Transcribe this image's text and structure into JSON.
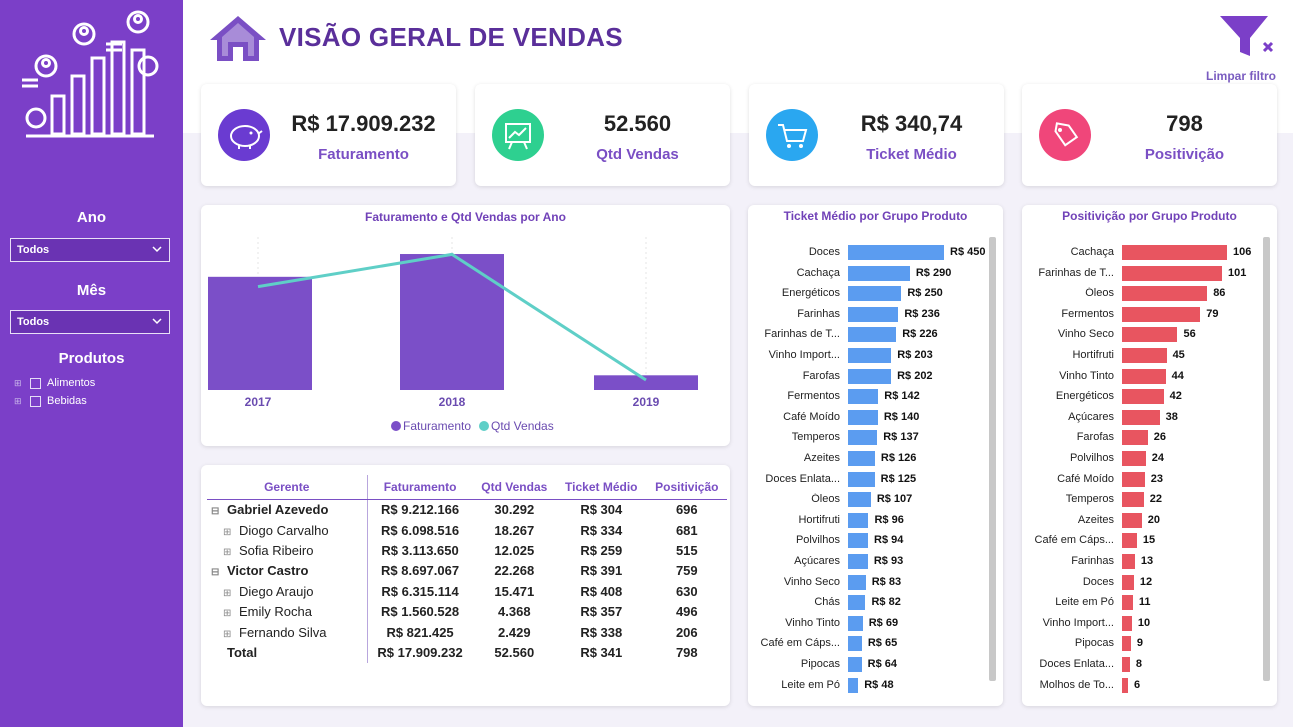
{
  "header": {
    "title": "VISÃO GERAL DE VENDAS",
    "clear_filter": "Limpar filtro"
  },
  "sidebar": {
    "ano_label": "Ano",
    "ano_value": "Todos",
    "mes_label": "Mês",
    "mes_value": "Todos",
    "produtos_label": "Produtos",
    "produtos": [
      "Alimentos",
      "Bebidas"
    ]
  },
  "kpis": [
    {
      "value": "R$ 17.909.232",
      "label": "Faturamento",
      "icon": "piggy-bank-icon",
      "color": "#6a3bd1"
    },
    {
      "value": "52.560",
      "label": "Qtd Vendas",
      "icon": "presentation-chart-icon",
      "color": "#2ed090"
    },
    {
      "value": "R$ 340,74",
      "label": "Ticket Médio",
      "icon": "shopping-cart-icon",
      "color": "#2aa7f0"
    },
    {
      "value": "798",
      "label": "Positivição",
      "icon": "price-tag-icon",
      "color": "#f0467a"
    }
  ],
  "chart_data": [
    {
      "type": "bar",
      "title": "Faturamento e Qtd Vendas por Ano",
      "categories": [
        "2017",
        "2018",
        "2019"
      ],
      "series": [
        {
          "name": "Faturamento",
          "type": "bar",
          "values": [
            7700000,
            9250000,
            1000000
          ],
          "color": "#7b4fc8"
        },
        {
          "name": "Qtd Vendas",
          "type": "line",
          "values": [
            21800,
            28600,
            2100
          ],
          "color": "#5fcfc7"
        }
      ],
      "legend": "bottom"
    },
    {
      "type": "bar",
      "orientation": "horizontal",
      "title": "Ticket Médio por Grupo Produto",
      "color": "#5b9cf0",
      "categories": [
        "Doces",
        "Cachaça",
        "Energéticos",
        "Farinhas",
        "Farinhas de T...",
        "Vinho Import...",
        "Farofas",
        "Fermentos",
        "Café Moído",
        "Temperos",
        "Azeites",
        "Doces Enlata...",
        "Óleos",
        "Hortifruti",
        "Polvilhos",
        "Açúcares",
        "Vinho Seco",
        "Chás",
        "Vinho Tinto",
        "Café em Cáps...",
        "Pipocas",
        "Leite em Pó"
      ],
      "values": [
        450,
        290,
        250,
        236,
        226,
        203,
        202,
        142,
        140,
        137,
        126,
        125,
        107,
        96,
        94,
        93,
        83,
        82,
        69,
        65,
        64,
        48
      ],
      "labels": [
        "R$ 450",
        "R$ 290",
        "R$ 250",
        "R$ 236",
        "R$ 226",
        "R$ 203",
        "R$ 202",
        "R$ 142",
        "R$ 140",
        "R$ 137",
        "R$ 126",
        "R$ 125",
        "R$ 107",
        "R$ 96",
        "R$ 94",
        "R$ 93",
        "R$ 83",
        "R$ 82",
        "R$ 69",
        "R$ 65",
        "R$ 64",
        "R$ 48"
      ]
    },
    {
      "type": "bar",
      "orientation": "horizontal",
      "title": "Positivição por Grupo Produto",
      "color": "#e85560",
      "categories": [
        "Cachaça",
        "Farinhas de T...",
        "Óleos",
        "Fermentos",
        "Vinho Seco",
        "Hortifruti",
        "Vinho Tinto",
        "Energéticos",
        "Açúcares",
        "Farofas",
        "Polvilhos",
        "Café Moído",
        "Temperos",
        "Azeites",
        "Café em Cáps...",
        "Farinhas",
        "Doces",
        "Leite em Pó",
        "Vinho Import...",
        "Pipocas",
        "Doces Enlata...",
        "Molhos de To..."
      ],
      "values": [
        106,
        101,
        86,
        79,
        56,
        45,
        44,
        42,
        38,
        26,
        24,
        23,
        22,
        20,
        15,
        13,
        12,
        11,
        10,
        9,
        8,
        6
      ],
      "labels": [
        "106",
        "101",
        "86",
        "79",
        "56",
        "45",
        "44",
        "42",
        "38",
        "26",
        "24",
        "23",
        "22",
        "20",
        "15",
        "13",
        "12",
        "11",
        "10",
        "9",
        "8",
        "6"
      ]
    }
  ],
  "table": {
    "headers": [
      "Gerente",
      "Faturamento",
      "Qtd Vendas",
      "Ticket Médio",
      "Positivição"
    ],
    "rows": [
      {
        "name": "Gabriel Azevedo",
        "fat": "R$ 9.212.166",
        "qtd": "30.292",
        "ticket": "R$ 304",
        "pos": "696"
      },
      {
        "name": "Diogo Carvalho",
        "fat": "R$ 6.098.516",
        "qtd": "18.267",
        "ticket": "R$ 334",
        "pos": "681"
      },
      {
        "name": "Sofia Ribeiro",
        "fat": "R$ 3.113.650",
        "qtd": "12.025",
        "ticket": "R$ 259",
        "pos": "515"
      },
      {
        "name": "Victor Castro",
        "fat": "R$ 8.697.067",
        "qtd": "22.268",
        "ticket": "R$ 391",
        "pos": "759"
      },
      {
        "name": "Diego Araujo",
        "fat": "R$ 6.315.114",
        "qtd": "15.471",
        "ticket": "R$ 408",
        "pos": "630"
      },
      {
        "name": "Emily Rocha",
        "fat": "R$ 1.560.528",
        "qtd": "4.368",
        "ticket": "R$ 357",
        "pos": "496"
      },
      {
        "name": "Fernando Silva",
        "fat": "R$ 821.425",
        "qtd": "2.429",
        "ticket": "R$ 338",
        "pos": "206"
      }
    ],
    "total": {
      "name": "Total",
      "fat": "R$ 17.909.232",
      "qtd": "52.560",
      "ticket": "R$ 341",
      "pos": "798"
    }
  }
}
